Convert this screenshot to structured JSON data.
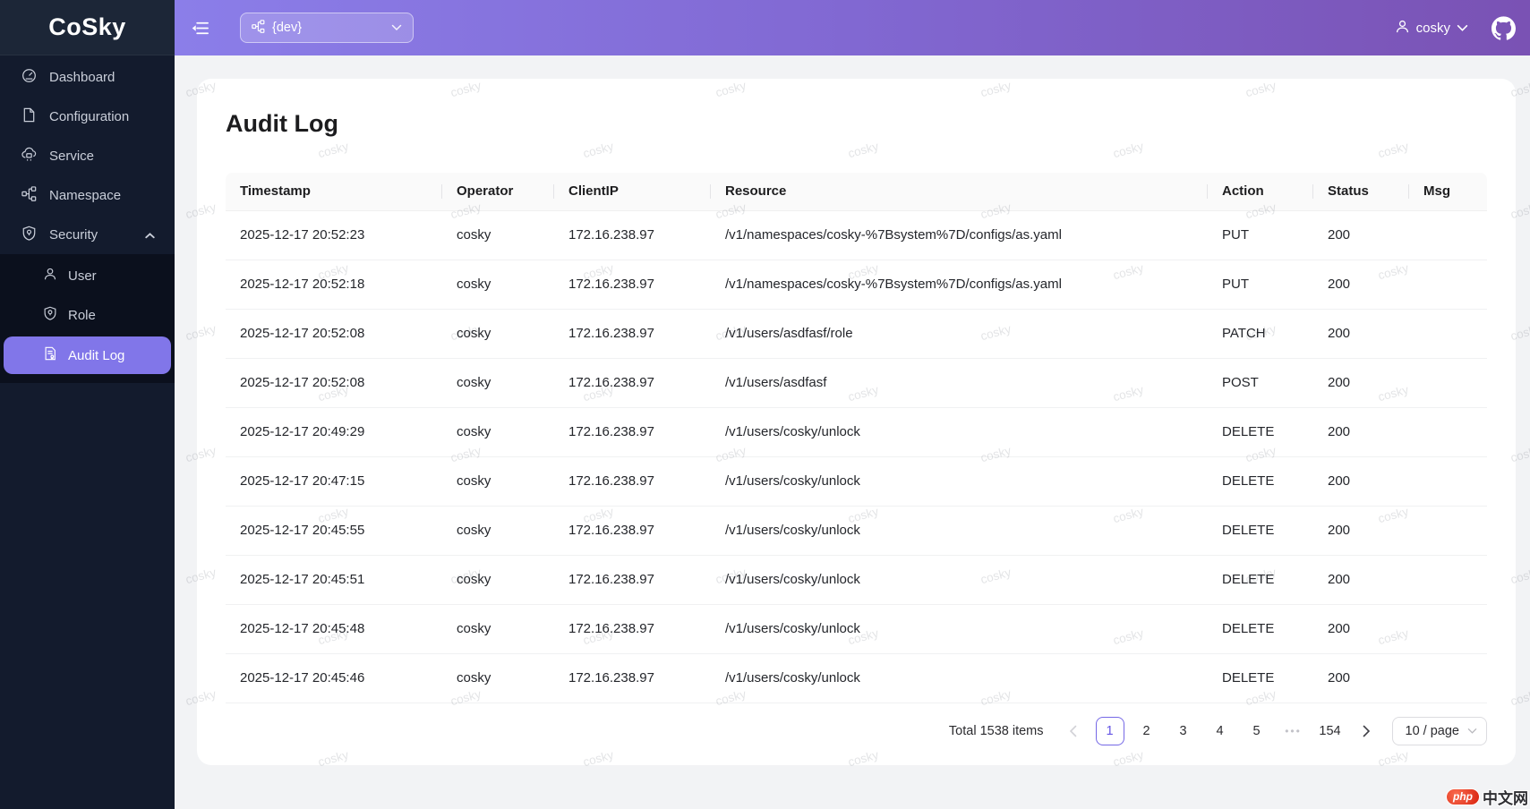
{
  "app": {
    "logo": "CoSky"
  },
  "sidebar": {
    "items": [
      {
        "label": "Dashboard"
      },
      {
        "label": "Configuration"
      },
      {
        "label": "Service"
      },
      {
        "label": "Namespace"
      },
      {
        "label": "Security",
        "expanded": true
      }
    ],
    "security_children": [
      {
        "label": "User"
      },
      {
        "label": "Role"
      },
      {
        "label": "Audit Log",
        "selected": true
      }
    ]
  },
  "header": {
    "namespace_select": {
      "value": "{dev}"
    },
    "user": {
      "name": "cosky"
    }
  },
  "page": {
    "title": "Audit Log"
  },
  "table": {
    "columns": [
      "Timestamp",
      "Operator",
      "ClientIP",
      "Resource",
      "Action",
      "Status",
      "Msg"
    ],
    "rows": [
      [
        "2025-12-17 20:52:23",
        "cosky",
        "172.16.238.97",
        "/v1/namespaces/cosky-%7Bsystem%7D/configs/as.yaml",
        "PUT",
        "200",
        ""
      ],
      [
        "2025-12-17 20:52:18",
        "cosky",
        "172.16.238.97",
        "/v1/namespaces/cosky-%7Bsystem%7D/configs/as.yaml",
        "PUT",
        "200",
        ""
      ],
      [
        "2025-12-17 20:52:08",
        "cosky",
        "172.16.238.97",
        "/v1/users/asdfasf/role",
        "PATCH",
        "200",
        ""
      ],
      [
        "2025-12-17 20:52:08",
        "cosky",
        "172.16.238.97",
        "/v1/users/asdfasf",
        "POST",
        "200",
        ""
      ],
      [
        "2025-12-17 20:49:29",
        "cosky",
        "172.16.238.97",
        "/v1/users/cosky/unlock",
        "DELETE",
        "200",
        ""
      ],
      [
        "2025-12-17 20:47:15",
        "cosky",
        "172.16.238.97",
        "/v1/users/cosky/unlock",
        "DELETE",
        "200",
        ""
      ],
      [
        "2025-12-17 20:45:55",
        "cosky",
        "172.16.238.97",
        "/v1/users/cosky/unlock",
        "DELETE",
        "200",
        ""
      ],
      [
        "2025-12-17 20:45:51",
        "cosky",
        "172.16.238.97",
        "/v1/users/cosky/unlock",
        "DELETE",
        "200",
        ""
      ],
      [
        "2025-12-17 20:45:48",
        "cosky",
        "172.16.238.97",
        "/v1/users/cosky/unlock",
        "DELETE",
        "200",
        ""
      ],
      [
        "2025-12-17 20:45:46",
        "cosky",
        "172.16.238.97",
        "/v1/users/cosky/unlock",
        "DELETE",
        "200",
        ""
      ]
    ]
  },
  "pagination": {
    "total_text": "Total 1538 items",
    "current": "1",
    "pages": [
      "1",
      "2",
      "3",
      "4",
      "5"
    ],
    "ellipsis": "•••",
    "last_page": "154",
    "page_size": "10 / page"
  },
  "watermark": {
    "text": "cosky"
  },
  "badge": {
    "php": "php",
    "cn": "中文网"
  },
  "colors": {
    "sidebar_bg": "#131b2d",
    "submenu_bg": "#0b101d",
    "selected_item": "#8176e9",
    "header_gradient_left": "#8b7ee9",
    "header_gradient_right": "#7a52b4",
    "active_page": "#6454e4",
    "status_ok": "200"
  }
}
